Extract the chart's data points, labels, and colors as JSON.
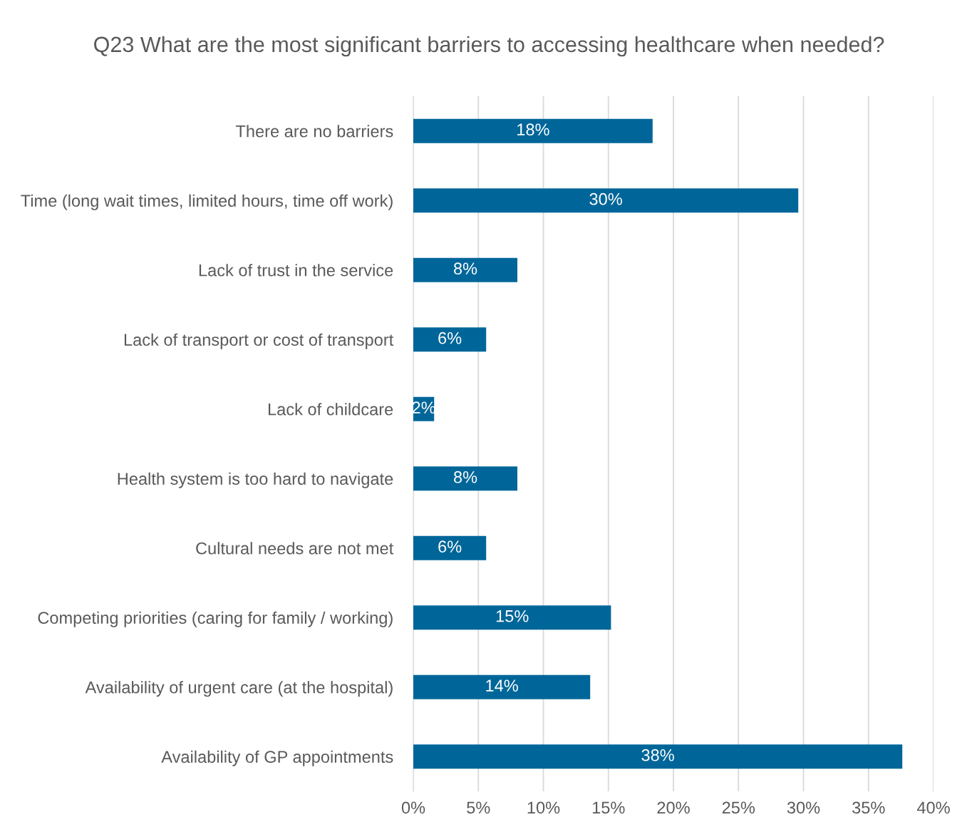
{
  "chart_data": {
    "type": "bar",
    "orientation": "horizontal",
    "title": "Q23 What are the most significant barriers to accessing healthcare when needed?",
    "categories": [
      "There are no barriers",
      "Time (long wait times, limited hours, time off work)",
      "Lack of trust in the service",
      "Lack of transport or cost of transport",
      "Lack of childcare",
      "Health system is too hard to navigate",
      "Cultural needs are not met",
      "Competing priorities (caring for family / working)",
      "Availability of urgent care (at the hospital)",
      "Availability of GP appointments"
    ],
    "values": [
      18.4,
      29.6,
      8.0,
      5.6,
      1.6,
      8.0,
      5.6,
      15.2,
      13.6,
      37.6
    ],
    "value_labels": [
      "18%",
      "30%",
      "8%",
      "6%",
      "2%",
      "8%",
      "6%",
      "15%",
      "14%",
      "38%"
    ],
    "color": "#006699",
    "xlim": [
      0,
      40
    ],
    "xticks": [
      {
        "value": 0,
        "label": "0%"
      },
      {
        "value": 5,
        "label": "5%"
      },
      {
        "value": 10,
        "label": "10%"
      },
      {
        "value": 15,
        "label": "15%"
      },
      {
        "value": 20,
        "label": "20%"
      },
      {
        "value": 25,
        "label": "25%"
      },
      {
        "value": 30,
        "label": "30%"
      },
      {
        "value": 35,
        "label": "35%"
      },
      {
        "value": 40,
        "label": "40%"
      }
    ],
    "grid": "x",
    "legend": false
  }
}
